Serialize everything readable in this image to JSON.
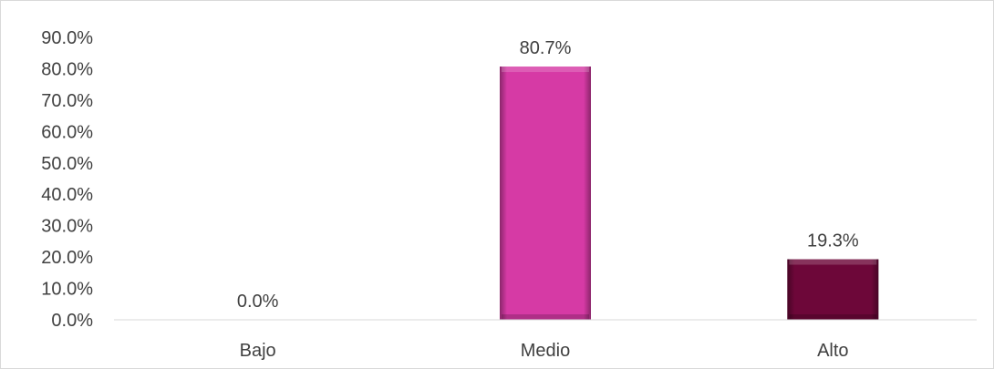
{
  "chart_data": {
    "type": "bar",
    "categories": [
      "Bajo",
      "Medio",
      "Alto"
    ],
    "values": [
      0.0,
      80.7,
      19.3
    ],
    "value_labels": [
      "0.0%",
      "80.7%",
      "19.3%"
    ],
    "y_ticks": [
      "0.0%",
      "10.0%",
      "20.0%",
      "30.0%",
      "40.0%",
      "50.0%",
      "60.0%",
      "70.0%",
      "80.0%",
      "90.0%"
    ],
    "ylim": [
      0,
      90
    ],
    "grid": false,
    "legend": "none",
    "colors": {
      "Bajo": "#d63aa5",
      "Medio": "#d63aa5",
      "Alto": "#6d0739"
    },
    "axis_color": "#d9d9d9",
    "text_color": "#404040"
  }
}
